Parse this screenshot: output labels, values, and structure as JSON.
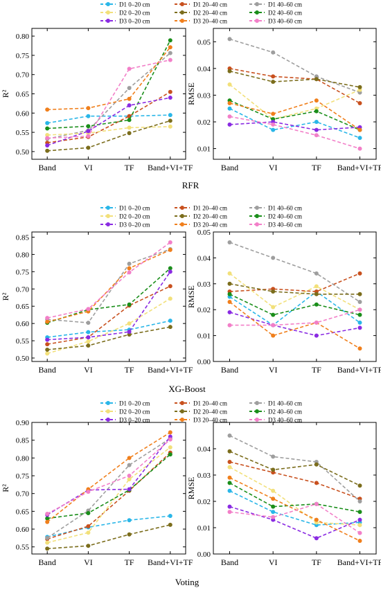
{
  "figure": {
    "categories": [
      "Band",
      "VI",
      "TF",
      "Band+VI+TF"
    ],
    "series_styles": [
      {
        "name": "D1 0–20 cm",
        "color": "#29b6e8"
      },
      {
        "name": "D1 20–40 cm",
        "color": "#c8501e"
      },
      {
        "name": "D1 40–60 cm",
        "color": "#9e9e9e"
      },
      {
        "name": "D2 0–20 cm",
        "color": "#f2e07a"
      },
      {
        "name": "D2 20–40 cm",
        "color": "#7b6d1c"
      },
      {
        "name": "D2 40–60 cm",
        "color": "#1a8e1a"
      },
      {
        "name": "D3 0–20 cm",
        "color": "#8a2be2"
      },
      {
        "name": "D3 20–40 cm",
        "color": "#f07f1c"
      },
      {
        "name": "D3 40–60 cm",
        "color": "#f27fc8"
      }
    ]
  },
  "chart_data": [
    {
      "type": "line",
      "model": "RFR",
      "ylabel": "R²",
      "ylim": [
        0.48,
        0.82
      ],
      "yticks": [
        "0.50",
        "0.55",
        "0.60",
        "0.65",
        "0.70",
        "0.75",
        "0.80"
      ],
      "series": [
        {
          "name": "D1 0–20 cm",
          "values": [
            0.574,
            0.592,
            0.592,
            0.595
          ]
        },
        {
          "name": "D1 20–40 cm",
          "values": [
            0.523,
            0.538,
            0.592,
            0.655
          ]
        },
        {
          "name": "D1 40–60 cm",
          "values": [
            0.533,
            0.555,
            0.665,
            0.756
          ]
        },
        {
          "name": "D2 0–20 cm",
          "values": [
            0.543,
            0.548,
            0.562,
            0.565
          ]
        },
        {
          "name": "D2 20–40 cm",
          "values": [
            0.502,
            0.51,
            0.548,
            0.58
          ]
        },
        {
          "name": "D2 40–60 cm",
          "values": [
            0.56,
            0.566,
            0.582,
            0.789
          ]
        },
        {
          "name": "D3 0–20 cm",
          "values": [
            0.516,
            0.553,
            0.62,
            0.64
          ]
        },
        {
          "name": "D3 20–40 cm",
          "values": [
            0.609,
            0.613,
            0.637,
            0.771
          ]
        },
        {
          "name": "D3 40–60 cm",
          "values": [
            0.535,
            0.54,
            0.715,
            0.738
          ]
        }
      ]
    },
    {
      "type": "line",
      "model": "RFR",
      "ylabel": "RMSE",
      "ylim": [
        0.006,
        0.055
      ],
      "yticks": [
        "0.01",
        "0.02",
        "0.03",
        "0.04",
        "0.05"
      ],
      "series": [
        {
          "name": "D1 0–20 cm",
          "values": [
            0.025,
            0.017,
            0.02,
            0.014
          ]
        },
        {
          "name": "D1 20–40 cm",
          "values": [
            0.04,
            0.037,
            0.036,
            0.027
          ]
        },
        {
          "name": "D1 40–60 cm",
          "values": [
            0.051,
            0.046,
            0.037,
            0.031
          ]
        },
        {
          "name": "D2 0–20 cm",
          "values": [
            0.034,
            0.021,
            0.025,
            0.032
          ]
        },
        {
          "name": "D2 20–40 cm",
          "values": [
            0.039,
            0.035,
            0.036,
            0.033
          ]
        },
        {
          "name": "D2 40–60 cm",
          "values": [
            0.028,
            0.021,
            0.024,
            0.017
          ]
        },
        {
          "name": "D3 0–20 cm",
          "values": [
            0.019,
            0.02,
            0.017,
            0.018
          ]
        },
        {
          "name": "D3 20–40 cm",
          "values": [
            0.027,
            0.023,
            0.028,
            0.017
          ]
        },
        {
          "name": "D3 40–60 cm",
          "values": [
            0.022,
            0.019,
            0.015,
            0.01
          ]
        }
      ]
    },
    {
      "type": "line",
      "model": "XG-Boost",
      "ylabel": "R²",
      "ylim": [
        0.49,
        0.865
      ],
      "yticks": [
        "0.50",
        "0.55",
        "0.60",
        "0.65",
        "0.70",
        "0.75",
        "0.80",
        "0.85"
      ],
      "series": [
        {
          "name": "D1 0–20 cm",
          "values": [
            0.56,
            0.575,
            0.582,
            0.608
          ]
        },
        {
          "name": "D1 20–40 cm",
          "values": [
            0.54,
            0.56,
            0.652,
            0.708
          ]
        },
        {
          "name": "D1 40–60 cm",
          "values": [
            0.612,
            0.602,
            0.773,
            0.815
          ]
        },
        {
          "name": "D2 0–20 cm",
          "values": [
            0.513,
            0.548,
            0.6,
            0.672
          ]
        },
        {
          "name": "D2 20–40 cm",
          "values": [
            0.524,
            0.536,
            0.568,
            0.59
          ]
        },
        {
          "name": "D2 40–60 cm",
          "values": [
            0.602,
            0.64,
            0.655,
            0.76
          ]
        },
        {
          "name": "D3 0–20 cm",
          "values": [
            0.553,
            0.56,
            0.576,
            0.75
          ]
        },
        {
          "name": "D3 20–40 cm",
          "values": [
            0.605,
            0.635,
            0.76,
            0.813
          ]
        },
        {
          "name": "D3 40–60 cm",
          "values": [
            0.616,
            0.642,
            0.748,
            0.835
          ]
        }
      ]
    },
    {
      "type": "line",
      "model": "XG-Boost",
      "ylabel": "RMSE",
      "ylim": [
        0.0,
        0.05
      ],
      "yticks": [
        "0.00",
        "0.01",
        "0.02",
        "0.03",
        "0.04",
        "0.05"
      ],
      "series": [
        {
          "name": "D1 0–20 cm",
          "values": [
            0.025,
            0.014,
            0.027,
            0.015
          ]
        },
        {
          "name": "D1 20–40 cm",
          "values": [
            0.027,
            0.028,
            0.027,
            0.034
          ]
        },
        {
          "name": "D1 40–60 cm",
          "values": [
            0.046,
            0.04,
            0.034,
            0.023
          ]
        },
        {
          "name": "D2 0–20 cm",
          "values": [
            0.034,
            0.021,
            0.029,
            0.02
          ]
        },
        {
          "name": "D2 20–40 cm",
          "values": [
            0.03,
            0.027,
            0.026,
            0.026
          ]
        },
        {
          "name": "D2 40–60 cm",
          "values": [
            0.026,
            0.018,
            0.022,
            0.018
          ]
        },
        {
          "name": "D3 0–20 cm",
          "values": [
            0.019,
            0.014,
            0.01,
            0.013
          ]
        },
        {
          "name": "D3 20–40 cm",
          "values": [
            0.023,
            0.01,
            0.015,
            0.005
          ]
        },
        {
          "name": "D3 40–60 cm",
          "values": [
            0.014,
            0.014,
            0.015,
            0.02
          ]
        }
      ]
    },
    {
      "type": "line",
      "model": "Voting",
      "ylabel": "R²",
      "ylim": [
        0.53,
        0.9
      ],
      "yticks": [
        "0.55",
        "0.60",
        "0.65",
        "0.70",
        "0.75",
        "0.80",
        "0.85",
        "0.90"
      ],
      "series": [
        {
          "name": "D1 0–20 cm",
          "values": [
            0.578,
            0.605,
            0.625,
            0.637
          ]
        },
        {
          "name": "D1 20–40 cm",
          "values": [
            0.572,
            0.608,
            0.708,
            0.815
          ]
        },
        {
          "name": "D1 40–60 cm",
          "values": [
            0.575,
            0.652,
            0.78,
            0.855
          ]
        },
        {
          "name": "D2 0–20 cm",
          "values": [
            0.562,
            0.59,
            0.74,
            0.83
          ]
        },
        {
          "name": "D2 20–40 cm",
          "values": [
            0.545,
            0.553,
            0.585,
            0.612
          ]
        },
        {
          "name": "D2 40–60 cm",
          "values": [
            0.63,
            0.645,
            0.71,
            0.81
          ]
        },
        {
          "name": "D3 0–20 cm",
          "values": [
            0.64,
            0.71,
            0.712,
            0.86
          ]
        },
        {
          "name": "D3 20–40 cm",
          "values": [
            0.62,
            0.712,
            0.8,
            0.872
          ]
        },
        {
          "name": "D3 40–60 cm",
          "values": [
            0.643,
            0.705,
            0.75,
            0.852
          ]
        }
      ]
    },
    {
      "type": "line",
      "model": "Voting",
      "ylabel": "RMSE",
      "ylim": [
        0.0,
        0.05
      ],
      "yticks": [
        "0.00",
        "0.01",
        "0.02",
        "0.03",
        "0.04"
      ],
      "series": [
        {
          "name": "D1 0–20 cm",
          "values": [
            0.024,
            0.016,
            0.011,
            0.012
          ]
        },
        {
          "name": "D1 20–40 cm",
          "values": [
            0.035,
            0.031,
            0.027,
            0.021
          ]
        },
        {
          "name": "D1 40–60 cm",
          "values": [
            0.045,
            0.037,
            0.035,
            0.02
          ]
        },
        {
          "name": "D2 0–20 cm",
          "values": [
            0.033,
            0.024,
            0.012,
            0.011
          ]
        },
        {
          "name": "D2 20–40 cm",
          "values": [
            0.039,
            0.032,
            0.034,
            0.026
          ]
        },
        {
          "name": "D2 40–60 cm",
          "values": [
            0.027,
            0.018,
            0.019,
            0.016
          ]
        },
        {
          "name": "D3 0–20 cm",
          "values": [
            0.018,
            0.013,
            0.006,
            0.013
          ]
        },
        {
          "name": "D3 20–40 cm",
          "values": [
            0.029,
            0.021,
            0.013,
            0.005
          ]
        },
        {
          "name": "D3 40–60 cm",
          "values": [
            0.016,
            0.014,
            0.019,
            0.008
          ]
        }
      ]
    }
  ]
}
